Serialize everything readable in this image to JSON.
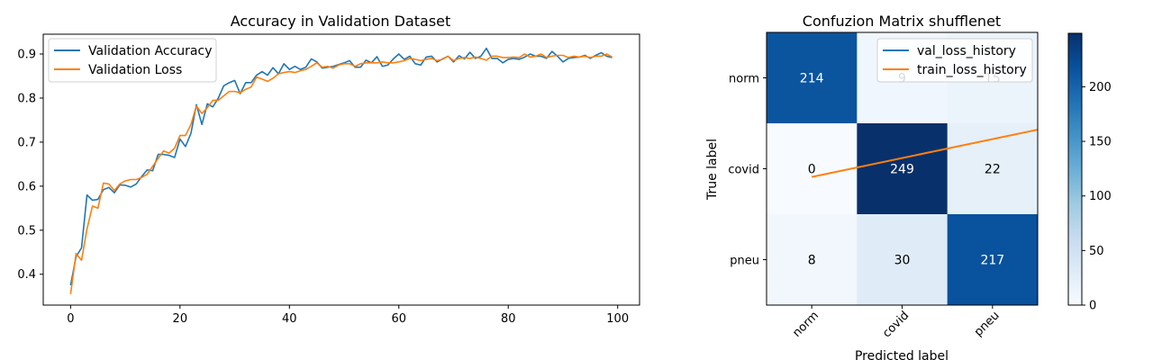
{
  "chart_data": [
    {
      "type": "line",
      "title": "Accuracy in Validation Dataset",
      "xlabel": "",
      "ylabel": "",
      "xlim": [
        -5,
        104
      ],
      "ylim": [
        0.33,
        0.945
      ],
      "x_ticks": [
        0,
        20,
        40,
        60,
        80,
        100
      ],
      "y_ticks": [
        0.4,
        0.5,
        0.6,
        0.7,
        0.8,
        0.9
      ],
      "grid": false,
      "legend": "upper-left",
      "series": [
        {
          "name": "Validation Accuracy",
          "color": "#1f77b4",
          "x": [
            0,
            1,
            2,
            3,
            4,
            5,
            6,
            7,
            8,
            9,
            10,
            11,
            12,
            13,
            14,
            15,
            16,
            17,
            18,
            19,
            20,
            21,
            22,
            23,
            24,
            25,
            26,
            27,
            28,
            29,
            30,
            31,
            32,
            33,
            34,
            35,
            36,
            37,
            38,
            39,
            40,
            41,
            42,
            43,
            44,
            45,
            46,
            47,
            48,
            49,
            50,
            51,
            52,
            53,
            54,
            55,
            56,
            57,
            58,
            59,
            60,
            61,
            62,
            63,
            64,
            65,
            66,
            67,
            68,
            69,
            70,
            71,
            72,
            73,
            74,
            75,
            76,
            77,
            78,
            79,
            80,
            81,
            82,
            83,
            84,
            85,
            86,
            87,
            88,
            89,
            90,
            91,
            92,
            93,
            94,
            95,
            96,
            97,
            98,
            99
          ],
          "values": [
            0.375,
            0.44,
            0.46,
            0.58,
            0.568,
            0.57,
            0.592,
            0.597,
            0.585,
            0.603,
            0.602,
            0.598,
            0.605,
            0.622,
            0.637,
            0.635,
            0.672,
            0.672,
            0.67,
            0.665,
            0.707,
            0.69,
            0.72,
            0.785,
            0.74,
            0.787,
            0.78,
            0.8,
            0.828,
            0.835,
            0.84,
            0.81,
            0.835,
            0.835,
            0.852,
            0.86,
            0.852,
            0.869,
            0.855,
            0.878,
            0.865,
            0.872,
            0.865,
            0.87,
            0.889,
            0.882,
            0.868,
            0.87,
            0.872,
            0.876,
            0.88,
            0.885,
            0.87,
            0.87,
            0.886,
            0.88,
            0.894,
            0.872,
            0.875,
            0.889,
            0.9,
            0.888,
            0.895,
            0.878,
            0.875,
            0.893,
            0.895,
            0.882,
            0.889,
            0.895,
            0.882,
            0.896,
            0.889,
            0.904,
            0.89,
            0.895,
            0.913,
            0.89,
            0.89,
            0.88,
            0.888,
            0.89,
            0.888,
            0.893,
            0.9,
            0.895,
            0.895,
            0.89,
            0.906,
            0.895,
            0.882,
            0.89,
            0.892,
            0.893,
            0.897,
            0.89,
            0.897,
            0.903,
            0.895,
            0.892
          ]
        },
        {
          "name": "Validation Loss",
          "color": "#ff7f0e",
          "x": [
            0,
            1,
            2,
            3,
            4,
            5,
            6,
            7,
            8,
            9,
            10,
            11,
            12,
            13,
            14,
            15,
            16,
            17,
            18,
            19,
            20,
            21,
            22,
            23,
            24,
            25,
            26,
            27,
            28,
            29,
            30,
            31,
            32,
            33,
            34,
            35,
            36,
            37,
            38,
            39,
            40,
            41,
            42,
            43,
            44,
            45,
            46,
            47,
            48,
            49,
            50,
            51,
            52,
            53,
            54,
            55,
            56,
            57,
            58,
            59,
            60,
            61,
            62,
            63,
            64,
            65,
            66,
            67,
            68,
            69,
            70,
            71,
            72,
            73,
            74,
            75,
            76,
            77,
            78,
            79,
            80,
            81,
            82,
            83,
            84,
            85,
            86,
            87,
            88,
            89,
            90,
            91,
            92,
            93,
            94,
            95,
            96,
            97,
            98,
            99
          ],
          "values": [
            0.355,
            0.447,
            0.432,
            0.503,
            0.555,
            0.55,
            0.607,
            0.605,
            0.59,
            0.605,
            0.612,
            0.615,
            0.615,
            0.62,
            0.627,
            0.645,
            0.663,
            0.68,
            0.675,
            0.686,
            0.715,
            0.715,
            0.74,
            0.782,
            0.765,
            0.778,
            0.795,
            0.795,
            0.805,
            0.815,
            0.815,
            0.812,
            0.82,
            0.825,
            0.848,
            0.843,
            0.838,
            0.845,
            0.855,
            0.858,
            0.86,
            0.858,
            0.862,
            0.865,
            0.872,
            0.88,
            0.87,
            0.872,
            0.868,
            0.875,
            0.878,
            0.878,
            0.872,
            0.878,
            0.88,
            0.88,
            0.88,
            0.882,
            0.88,
            0.88,
            0.882,
            0.885,
            0.89,
            0.888,
            0.885,
            0.888,
            0.89,
            0.885,
            0.888,
            0.895,
            0.885,
            0.89,
            0.892,
            0.89,
            0.893,
            0.89,
            0.886,
            0.895,
            0.895,
            0.892,
            0.892,
            0.893,
            0.892,
            0.9,
            0.893,
            0.895,
            0.9,
            0.892,
            0.895,
            0.897,
            0.897,
            0.892,
            0.895,
            0.893,
            0.895,
            0.892,
            0.895,
            0.895,
            0.9,
            0.893
          ]
        }
      ]
    },
    {
      "type": "heatmap",
      "title": "Confuzion Matrix shufflenet",
      "xlabel": "Predicted label",
      "ylabel": "True label",
      "x_categories": [
        "norm",
        "covid",
        "pneu"
      ],
      "y_categories": [
        "norm",
        "covid",
        "pneu"
      ],
      "values": [
        [
          214,
          9,
          15
        ],
        [
          0,
          249,
          22
        ],
        [
          8,
          30,
          217
        ]
      ],
      "cell_labels": [
        [
          "214",
          "9",
          "15"
        ],
        [
          "0",
          "249",
          "22"
        ],
        [
          "8",
          "30",
          "217"
        ]
      ],
      "colorscale": "Blues",
      "vmin": 0,
      "vmax": 249,
      "colorbar_ticks": [
        0,
        50,
        100,
        150,
        200
      ],
      "legend": "upper-right",
      "legend_entries": [
        {
          "name": "val_loss_history",
          "color": "#1f77b4"
        },
        {
          "name": "train_loss_history",
          "color": "#ff7f0e"
        }
      ],
      "overlay_lines": [
        {
          "name": "train_loss_history",
          "color": "#ff7f0e",
          "y_row_position": [
            1.09,
            1.07
          ]
        }
      ]
    }
  ]
}
